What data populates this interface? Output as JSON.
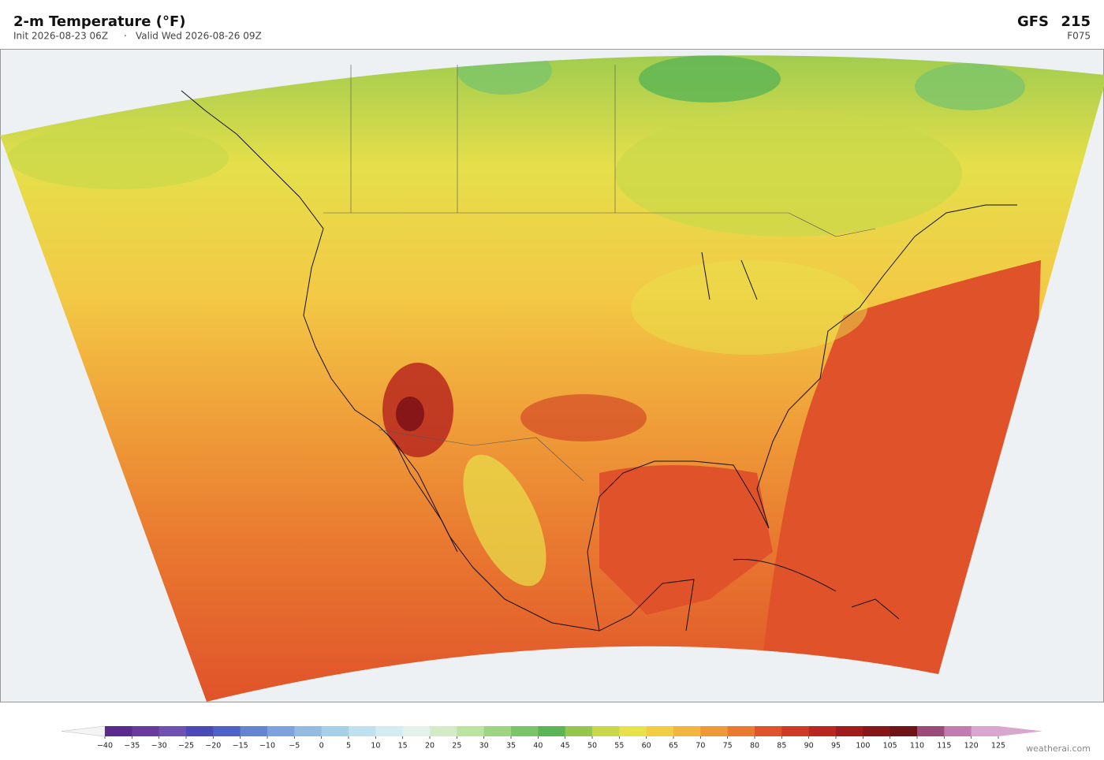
{
  "header": {
    "title": "2-m Temperature  (°F)",
    "init": "Init 2026-08-23 06Z",
    "separator": "·",
    "valid": "Valid Wed 2026-08-26 09Z",
    "model": "GFS",
    "run": "215",
    "forecast_hour": "F075"
  },
  "colorbar": {
    "ticks": [
      {
        "value": -40,
        "label": "−40"
      },
      {
        "value": -35,
        "label": "−35"
      },
      {
        "value": -30,
        "label": "−30"
      },
      {
        "value": -25,
        "label": "−25"
      },
      {
        "value": -20,
        "label": "−20"
      },
      {
        "value": -15,
        "label": "−15"
      },
      {
        "value": -10,
        "label": "−10"
      },
      {
        "value": -5,
        "label": "−5"
      },
      0,
      5,
      10,
      15,
      20,
      25,
      30,
      35,
      40,
      45,
      50,
      55,
      60,
      65,
      70,
      75,
      80,
      85,
      90,
      95,
      100,
      105,
      110,
      115,
      120,
      125
    ],
    "colors": [
      "#5b2a8c",
      "#6a3a9e",
      "#7050b0",
      "#4a4ab8",
      "#4e62c8",
      "#6486d2",
      "#7ea2dc",
      "#94bce2",
      "#a8cfe8",
      "#bfe0ee",
      "#d4ecf0",
      "#e4f2ec",
      "#d4ecc6",
      "#bde3a0",
      "#9ed482",
      "#7cc46a",
      "#5bb455",
      "#96c74c",
      "#c9d84a",
      "#e8e24a",
      "#f3ce45",
      "#f2b53e",
      "#ee9838",
      "#e97a30",
      "#e0532a",
      "#cf3a24",
      "#b8281e",
      "#9e1c1c",
      "#861618",
      "#6e1416",
      "#9c4a7a",
      "#c27cb0",
      "#d9a6cf"
    ],
    "under_color": "#f4f4f6",
    "over_color": "#d9a6cf"
  },
  "watermark": "weatherai.com"
}
